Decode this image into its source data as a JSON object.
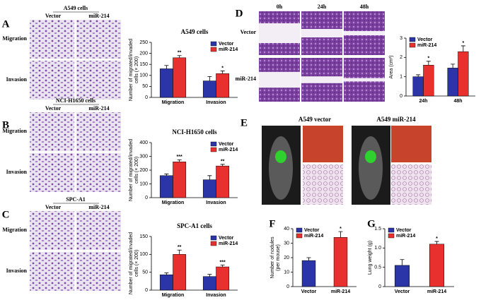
{
  "chart_data": [
    {
      "type": "bar",
      "title": "A549 cells",
      "ylabel": [
        "Number of migrated/invaded",
        "cells (× 200)"
      ],
      "categories": [
        "Migration",
        "Invasion"
      ],
      "series": [
        {
          "name": "Vector",
          "color": "#2b35a8",
          "values": [
            130,
            75
          ],
          "errors": [
            15,
            20
          ]
        },
        {
          "name": "miR-214",
          "color": "#e8302f",
          "values": [
            180,
            108
          ],
          "errors": [
            10,
            12
          ],
          "significance": [
            "**",
            "*"
          ]
        }
      ],
      "ylim": [
        0,
        250
      ],
      "yticks": [
        0,
        50,
        100,
        150,
        200,
        250
      ],
      "legend": "upper right"
    },
    {
      "type": "bar",
      "title": "NCI-H1650 cells",
      "ylabel": [
        "Number of migrated/invaded",
        "cells (× 200)"
      ],
      "categories": [
        "Migration",
        "Invasion"
      ],
      "series": [
        {
          "name": "Vector",
          "color": "#2b35a8",
          "values": [
            160,
            130
          ],
          "errors": [
            12,
            30
          ]
        },
        {
          "name": "miR-214",
          "color": "#e8302f",
          "values": [
            260,
            230
          ],
          "errors": [
            15,
            12
          ],
          "significance": [
            "***",
            "**"
          ]
        }
      ],
      "ylim": [
        0,
        400
      ],
      "yticks": [
        0,
        100,
        200,
        300,
        400
      ],
      "legend": "upper right"
    },
    {
      "type": "bar",
      "title": "SPC-A1 cells",
      "ylabel": [
        "Number of migrated/invaded",
        "cells (× 200)"
      ],
      "categories": [
        "Migration",
        "Invasion"
      ],
      "series": [
        {
          "name": "Vector",
          "color": "#2b35a8",
          "values": [
            43,
            38
          ],
          "errors": [
            5,
            6
          ]
        },
        {
          "name": "miR-214",
          "color": "#e8302f",
          "values": [
            100,
            65
          ],
          "errors": [
            12,
            5
          ],
          "significance": [
            "**",
            "***"
          ]
        }
      ],
      "ylim": [
        0,
        150
      ],
      "yticks": [
        0,
        50,
        100,
        150
      ],
      "legend": "upper right"
    },
    {
      "type": "bar",
      "ylabel": [
        "Area (cm²)"
      ],
      "categories": [
        "24h",
        "48h"
      ],
      "series": [
        {
          "name": "Vector",
          "color": "#2b35a8",
          "values": [
            1.0,
            1.45
          ],
          "errors": [
            0.1,
            0.2
          ]
        },
        {
          "name": "miR-214",
          "color": "#e8302f",
          "values": [
            1.6,
            2.3
          ],
          "errors": [
            0.2,
            0.3
          ],
          "significance": [
            "*",
            "*"
          ]
        }
      ],
      "ylim": [
        0,
        3
      ],
      "yticks": [
        0,
        1,
        2,
        3
      ],
      "legend": "upper left"
    },
    {
      "type": "simple-bar",
      "ylabel": [
        "Number of nodules",
        "(per mouse)"
      ],
      "categories": [
        "Vector",
        "miR-214"
      ],
      "values": [
        18,
        34
      ],
      "errors": [
        2,
        4
      ],
      "colors": [
        "#2b35a8",
        "#e8302f"
      ],
      "significance": [
        null,
        "*"
      ],
      "ylim": [
        0,
        40
      ],
      "yticks": [
        0,
        10,
        20,
        30,
        40
      ],
      "legend": "upper left"
    },
    {
      "type": "simple-bar",
      "ylabel": [
        "Lung weight (g)"
      ],
      "categories": [
        "Vector",
        "miR-214"
      ],
      "values": [
        0.55,
        1.1
      ],
      "errors": [
        0.15,
        0.07
      ],
      "colors": [
        "#2b35a8",
        "#e8302f"
      ],
      "significance": [
        null,
        "*"
      ],
      "ylim": [
        0,
        1.5
      ],
      "yticks": [
        0,
        0.5,
        {
          "value": 1,
          "label": "1.0"
        },
        1.5
      ],
      "legend": "upper left"
    }
  ],
  "panels": [
    {
      "label": "A",
      "header": "A549 cells",
      "columns": [
        "Vector",
        "miR-214"
      ],
      "rows": [
        "Migration",
        "Invasion"
      ]
    },
    {
      "label": "B",
      "header": "NCI-H1650 cells",
      "columns": [
        "Vector",
        "miR-214"
      ],
      "rows": [
        "Migration",
        "Invasion"
      ]
    },
    {
      "label": "C",
      "header": "SPC-A1",
      "columns": [
        "Vector",
        "miR-214"
      ],
      "rows": [
        "Migration",
        "Invasion"
      ]
    },
    {
      "label": "D",
      "columns": [
        "0h",
        "24h",
        "48h"
      ],
      "rows": [
        "Vector",
        "miR-214"
      ]
    },
    {
      "label": "E",
      "columns": [
        "A549 vector",
        "A549 miR-214"
      ]
    },
    {
      "label": "F"
    },
    {
      "label": "G"
    }
  ]
}
